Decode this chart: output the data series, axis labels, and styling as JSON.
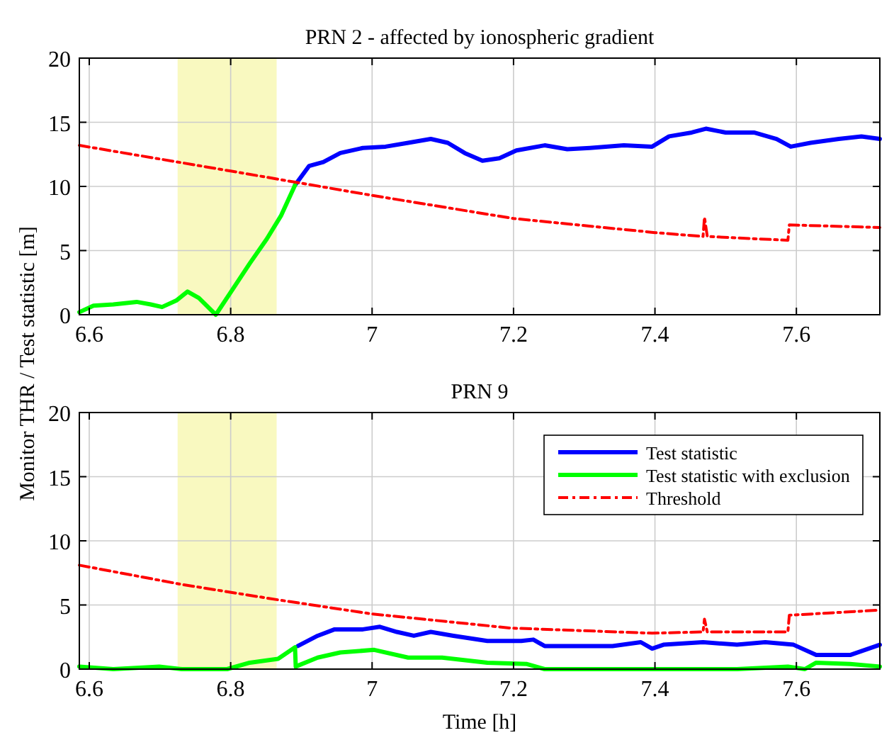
{
  "chart_data": [
    {
      "type": "line",
      "title": "PRN 2 - affected by ionospheric gradient",
      "ylabel": "Monitor THR / Test statistic [m]",
      "xlim": [
        6.586,
        7.718
      ],
      "ylim": [
        0,
        20
      ],
      "xticks": [
        6.6,
        6.8,
        7,
        7.2,
        7.4,
        7.6
      ],
      "yticks": [
        0,
        5,
        10,
        15,
        20
      ],
      "grid": true,
      "legend": false,
      "bands": [
        {
          "axis": "x",
          "from": 6.725,
          "to": 6.865,
          "color": "#f7f7b0"
        }
      ],
      "series": [
        {
          "color": "#0000ff",
          "line_style": "solid",
          "x": [
            6.891,
            6.911,
            6.931,
            6.955,
            6.987,
            7.019,
            7.051,
            7.083,
            7.107,
            7.131,
            7.156,
            7.18,
            7.204,
            7.244,
            7.276,
            7.308,
            7.356,
            7.396,
            7.42,
            7.452,
            7.472,
            7.5,
            7.54,
            7.572,
            7.592,
            7.62,
            7.66,
            7.692,
            7.718
          ],
          "values": [
            10.1,
            11.6,
            11.9,
            12.6,
            13.0,
            13.1,
            13.4,
            13.7,
            13.4,
            12.6,
            12.0,
            12.2,
            12.8,
            13.2,
            12.9,
            13.0,
            13.2,
            13.1,
            13.9,
            14.2,
            14.5,
            14.2,
            14.2,
            13.7,
            13.1,
            13.4,
            13.7,
            13.9,
            13.7
          ]
        },
        {
          "color": "#00ff00",
          "line_style": "solid",
          "x": [
            6.586,
            6.606,
            6.634,
            6.667,
            6.687,
            6.703,
            6.723,
            6.739,
            6.755,
            6.779,
            6.803,
            6.827,
            6.851,
            6.871,
            6.891
          ],
          "values": [
            0.2,
            0.7,
            0.8,
            1.0,
            0.8,
            0.6,
            1.1,
            1.8,
            1.3,
            0,
            2.0,
            4.0,
            5.9,
            7.7,
            10.1
          ]
        },
        {
          "color": "#ff0000",
          "line_style": "dashed",
          "x": [
            6.586,
            6.8,
            7.0,
            7.2,
            7.4,
            7.468,
            7.47,
            7.474,
            7.588,
            7.59,
            7.718
          ],
          "values": [
            13.2,
            11.2,
            9.3,
            7.5,
            6.4,
            6.1,
            7.6,
            6.1,
            5.8,
            7.0,
            6.8
          ]
        }
      ]
    },
    {
      "type": "line",
      "title": "PRN 9",
      "xlabel": "Time [h]",
      "xlim": [
        6.586,
        7.718
      ],
      "ylim": [
        0,
        20
      ],
      "xticks": [
        6.6,
        6.8,
        7,
        7.2,
        7.4,
        7.6
      ],
      "yticks": [
        0,
        5,
        10,
        15,
        20
      ],
      "grid": true,
      "legend": "top right",
      "bands": [
        {
          "axis": "x",
          "from": 6.725,
          "to": 6.865,
          "color": "#f7f7b0"
        }
      ],
      "series": [
        {
          "name": "Test statistic",
          "color": "#0000ff",
          "line_style": "solid",
          "x": [
            6.895,
            6.923,
            6.947,
            6.987,
            7.011,
            7.035,
            7.059,
            7.083,
            7.115,
            7.163,
            7.211,
            7.228,
            7.244,
            7.292,
            7.34,
            7.38,
            7.396,
            7.412,
            7.468,
            7.516,
            7.556,
            7.596,
            7.628,
            7.676,
            7.718
          ],
          "values": [
            1.8,
            2.6,
            3.1,
            3.1,
            3.3,
            2.9,
            2.6,
            2.9,
            2.6,
            2.2,
            2.2,
            2.3,
            1.8,
            1.8,
            1.8,
            2.1,
            1.6,
            1.9,
            2.1,
            1.9,
            2.1,
            1.9,
            1.1,
            1.1,
            1.9
          ]
        },
        {
          "name": "Test statistic with exclusion",
          "color": "#00ff00",
          "line_style": "solid",
          "x": [
            6.586,
            6.634,
            6.699,
            6.731,
            6.795,
            6.827,
            6.867,
            6.891,
            6.892,
            6.923,
            6.955,
            7.003,
            7.051,
            7.099,
            7.163,
            7.219,
            7.244,
            7.356,
            7.516,
            7.588,
            7.612,
            7.628,
            7.676,
            7.718
          ],
          "values": [
            0.2,
            0,
            0.2,
            0,
            0,
            0.5,
            0.8,
            1.7,
            0.2,
            0.9,
            1.3,
            1.5,
            0.9,
            0.9,
            0.5,
            0.4,
            0,
            0,
            0,
            0.2,
            0,
            0.5,
            0.4,
            0.2
          ]
        },
        {
          "name": "Threshold",
          "color": "#ff0000",
          "line_style": "dashed",
          "x": [
            6.586,
            6.731,
            6.867,
            7.0,
            7.196,
            7.396,
            7.468,
            7.47,
            7.474,
            7.588,
            7.59,
            7.718
          ],
          "values": [
            8.1,
            6.6,
            5.4,
            4.3,
            3.2,
            2.8,
            2.9,
            3.9,
            2.9,
            2.9,
            4.2,
            4.6
          ]
        }
      ]
    }
  ]
}
